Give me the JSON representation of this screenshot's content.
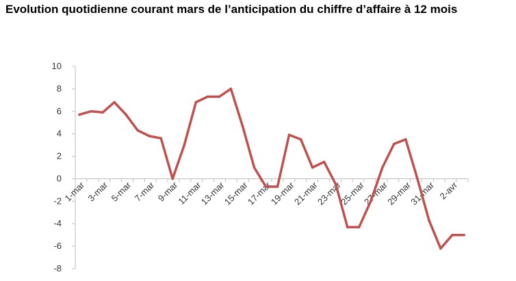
{
  "chart_data": {
    "type": "line",
    "title": "Evolution quotidienne courant mars de l’anticipation du chiffre d’affaire à 12 mois",
    "xlabel": "",
    "ylabel": "",
    "ylim": [
      -8,
      10
    ],
    "yticks": [
      10,
      8,
      6,
      4,
      2,
      0,
      -2,
      -4,
      -6,
      -8
    ],
    "x": [
      "1-mar",
      "2-mar",
      "3-mar",
      "4-mar",
      "5-mar",
      "6-mar",
      "7-mar",
      "8-mar",
      "9-mar",
      "10-mar",
      "11-mar",
      "12-mar",
      "13-mar",
      "14-mar",
      "15-mar",
      "16-mar",
      "17-mar",
      "18-mar",
      "19-mar",
      "20-mar",
      "21-mar",
      "22-mar",
      "23-mar",
      "24-mar",
      "25-mar",
      "26-mar",
      "27-mar",
      "28-mar",
      "29-mar",
      "30-mar",
      "31-mar",
      "1-avr",
      "2-avr",
      "3-avr"
    ],
    "xtick_labels": [
      "1-mar",
      "3-mar",
      "5-mar",
      "7-mar",
      "9-mar",
      "11-mar",
      "13-mar",
      "15-mar",
      "17-mar",
      "19-mar",
      "21-mar",
      "23-mar",
      "25-mar",
      "27-mar",
      "29-mar",
      "31-mar",
      "2-avr"
    ],
    "series": [
      {
        "values": [
          5.7,
          6.0,
          5.9,
          6.8,
          5.7,
          4.3,
          3.8,
          3.6,
          0.0,
          3.0,
          6.8,
          7.3,
          7.3,
          8.0,
          4.7,
          1.0,
          -0.7,
          -0.7,
          3.9,
          3.5,
          1.0,
          1.5,
          -0.5,
          -4.3,
          -4.3,
          -2.0,
          1.0,
          3.1,
          3.5,
          0.0,
          -3.7,
          -6.2,
          -5.0,
          -5.0
        ]
      }
    ],
    "colors": {
      "line": "#c0504d",
      "axis": "#bfbfbf"
    },
    "grid": false,
    "legend": "none"
  }
}
